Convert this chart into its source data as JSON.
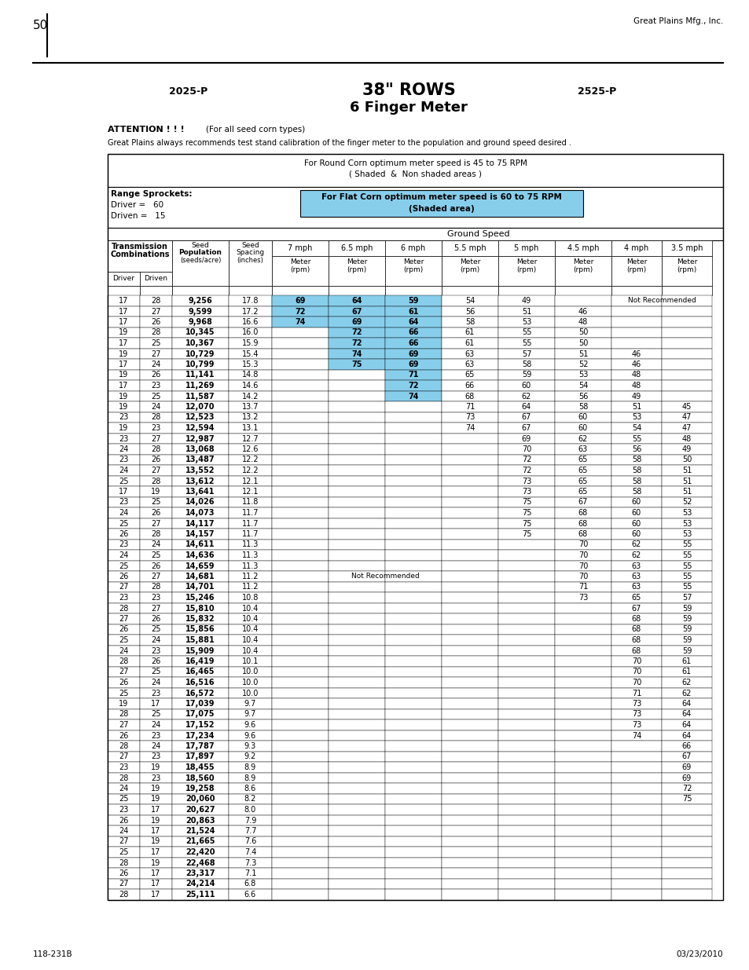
{
  "page_number": "50",
  "company": "Great Plains Mfg., Inc.",
  "model_left": "2025-P",
  "model_right": "2525-P",
  "title_line1": "38\" ROWS",
  "title_line2": "6 Finger Meter",
  "attention_bold": "ATTENTION ! ! !",
  "attention_sub": "(For all seed corn types)",
  "calibration_note": "Great Plains always recommends test stand calibration of the finger meter to the population and ground speed desired .",
  "round_corn_note": "For Round Corn optimum meter speed is 45 to 75 RPM",
  "round_corn_note2": "( Shaded  &  Non shaded areas )",
  "range_sprockets": "Range Sprockets:",
  "driver_label": "Driver =",
  "driver_val": "60",
  "driven_label": "Driven =",
  "driven_val": "15",
  "flat_corn_note": "For Flat Corn optimum meter speed is 60 to 75 RPM",
  "flat_corn_note2": "(Shaded area)",
  "ground_speed": "Ground Speed",
  "col_headers": [
    "7 mph",
    "6.5 mph",
    "6 mph",
    "5.5 mph",
    "5 mph",
    "4.5 mph",
    "4 mph",
    "3.5 mph"
  ],
  "footer_left": "118-231B",
  "footer_right": "03/23/2010",
  "table_data": [
    [
      17,
      28,
      "9,256",
      "17.8",
      "69",
      "64",
      "59",
      "54",
      "49",
      "NR2",
      "",
      ""
    ],
    [
      17,
      27,
      "9,599",
      "17.2",
      "72",
      "67",
      "61",
      "56",
      "51",
      "46",
      "",
      ""
    ],
    [
      17,
      26,
      "9,968",
      "16.6",
      "74",
      "69",
      "64",
      "58",
      "53",
      "48",
      "",
      ""
    ],
    [
      19,
      28,
      "10,345",
      "16.0",
      "",
      "72",
      "66",
      "61",
      "55",
      "50",
      "",
      ""
    ],
    [
      17,
      25,
      "10,367",
      "15.9",
      "",
      "72",
      "66",
      "61",
      "55",
      "50",
      "",
      ""
    ],
    [
      19,
      27,
      "10,729",
      "15.4",
      "",
      "74",
      "69",
      "63",
      "57",
      "51",
      "46",
      ""
    ],
    [
      17,
      24,
      "10,799",
      "15.3",
      "",
      "75",
      "69",
      "63",
      "58",
      "52",
      "46",
      ""
    ],
    [
      19,
      26,
      "11,141",
      "14.8",
      "",
      "",
      "71",
      "65",
      "59",
      "53",
      "48",
      ""
    ],
    [
      17,
      23,
      "11,269",
      "14.6",
      "",
      "",
      "72",
      "66",
      "60",
      "54",
      "48",
      ""
    ],
    [
      19,
      25,
      "11,587",
      "14.2",
      "",
      "",
      "74",
      "68",
      "62",
      "56",
      "49",
      ""
    ],
    [
      19,
      24,
      "12,070",
      "13.7",
      "",
      "",
      "",
      "71",
      "64",
      "58",
      "51",
      "45"
    ],
    [
      23,
      28,
      "12,523",
      "13.2",
      "",
      "",
      "",
      "73",
      "67",
      "60",
      "53",
      "47"
    ],
    [
      19,
      23,
      "12,594",
      "13.1",
      "",
      "",
      "",
      "74",
      "67",
      "60",
      "54",
      "47"
    ],
    [
      23,
      27,
      "12,987",
      "12.7",
      "",
      "",
      "",
      "",
      "69",
      "62",
      "55",
      "48"
    ],
    [
      24,
      28,
      "13,068",
      "12.6",
      "",
      "",
      "",
      "",
      "70",
      "63",
      "56",
      "49"
    ],
    [
      23,
      26,
      "13,487",
      "12.2",
      "",
      "",
      "",
      "",
      "72",
      "65",
      "58",
      "50"
    ],
    [
      24,
      27,
      "13,552",
      "12.2",
      "",
      "",
      "",
      "",
      "72",
      "65",
      "58",
      "51"
    ],
    [
      25,
      28,
      "13,612",
      "12.1",
      "",
      "",
      "",
      "",
      "73",
      "65",
      "58",
      "51"
    ],
    [
      17,
      19,
      "13,641",
      "12.1",
      "",
      "",
      "",
      "",
      "73",
      "65",
      "58",
      "51"
    ],
    [
      23,
      25,
      "14,026",
      "11.8",
      "",
      "",
      "",
      "",
      "75",
      "67",
      "60",
      "52"
    ],
    [
      24,
      26,
      "14,073",
      "11.7",
      "",
      "",
      "",
      "",
      "75",
      "68",
      "60",
      "53"
    ],
    [
      25,
      27,
      "14,117",
      "11.7",
      "",
      "",
      "",
      "",
      "75",
      "68",
      "60",
      "53"
    ],
    [
      26,
      28,
      "14,157",
      "11.7",
      "",
      "",
      "",
      "",
      "75",
      "68",
      "60",
      "53"
    ],
    [
      23,
      24,
      "14,611",
      "11.3",
      "",
      "",
      "",
      "",
      "",
      "70",
      "62",
      "55"
    ],
    [
      24,
      25,
      "14,636",
      "11.3",
      "",
      "",
      "",
      "",
      "",
      "70",
      "62",
      "55"
    ],
    [
      25,
      26,
      "14,659",
      "11.3",
      "",
      "",
      "",
      "",
      "",
      "70",
      "63",
      "55"
    ],
    [
      26,
      27,
      "14,681",
      "11.2",
      "NR1",
      "",
      "",
      "",
      "",
      "70",
      "63",
      "55"
    ],
    [
      27,
      28,
      "14,701",
      "11.2",
      "",
      "",
      "",
      "",
      "",
      "71",
      "63",
      "55"
    ],
    [
      23,
      23,
      "15,246",
      "10.8",
      "",
      "",
      "",
      "",
      "",
      "73",
      "65",
      "57"
    ],
    [
      28,
      27,
      "15,810",
      "10.4",
      "",
      "",
      "",
      "",
      "",
      "",
      "67",
      "59"
    ],
    [
      27,
      26,
      "15,832",
      "10.4",
      "",
      "",
      "",
      "",
      "",
      "",
      "68",
      "59"
    ],
    [
      26,
      25,
      "15,856",
      "10.4",
      "",
      "",
      "",
      "",
      "",
      "",
      "68",
      "59"
    ],
    [
      25,
      24,
      "15,881",
      "10.4",
      "",
      "",
      "",
      "",
      "",
      "",
      "68",
      "59"
    ],
    [
      24,
      23,
      "15,909",
      "10.4",
      "",
      "",
      "",
      "",
      "",
      "",
      "68",
      "59"
    ],
    [
      28,
      26,
      "16,419",
      "10.1",
      "",
      "",
      "",
      "",
      "",
      "",
      "70",
      "61"
    ],
    [
      27,
      25,
      "16,465",
      "10.0",
      "",
      "",
      "",
      "",
      "",
      "",
      "70",
      "61"
    ],
    [
      26,
      24,
      "16,516",
      "10.0",
      "",
      "",
      "",
      "",
      "",
      "",
      "70",
      "62"
    ],
    [
      25,
      23,
      "16,572",
      "10.0",
      "",
      "",
      "",
      "",
      "",
      "",
      "71",
      "62"
    ],
    [
      19,
      17,
      "17,039",
      "9.7",
      "",
      "",
      "",
      "",
      "",
      "",
      "73",
      "64"
    ],
    [
      28,
      25,
      "17,075",
      "9.7",
      "",
      "",
      "",
      "",
      "",
      "",
      "73",
      "64"
    ],
    [
      27,
      24,
      "17,152",
      "9.6",
      "",
      "",
      "",
      "",
      "",
      "",
      "73",
      "64"
    ],
    [
      26,
      23,
      "17,234",
      "9.6",
      "",
      "",
      "",
      "",
      "",
      "",
      "74",
      "64"
    ],
    [
      28,
      24,
      "17,787",
      "9.3",
      "",
      "",
      "",
      "",
      "",
      "",
      "",
      "66"
    ],
    [
      27,
      23,
      "17,897",
      "9.2",
      "",
      "",
      "",
      "",
      "",
      "",
      "",
      "67"
    ],
    [
      23,
      19,
      "18,455",
      "8.9",
      "",
      "",
      "",
      "",
      "",
      "",
      "",
      "69"
    ],
    [
      28,
      23,
      "18,560",
      "8.9",
      "",
      "",
      "",
      "",
      "",
      "",
      "",
      "69"
    ],
    [
      24,
      19,
      "19,258",
      "8.6",
      "",
      "",
      "",
      "",
      "",
      "",
      "",
      "72"
    ],
    [
      25,
      19,
      "20,060",
      "8.2",
      "",
      "",
      "",
      "",
      "",
      "",
      "",
      "75"
    ],
    [
      23,
      17,
      "20,627",
      "8.0",
      "",
      "",
      "",
      "",
      "",
      "",
      "",
      ""
    ],
    [
      26,
      19,
      "20,863",
      "7.9",
      "",
      "",
      "",
      "",
      "",
      "",
      "",
      ""
    ],
    [
      24,
      17,
      "21,524",
      "7.7",
      "",
      "",
      "",
      "",
      "",
      "",
      "",
      ""
    ],
    [
      27,
      19,
      "21,665",
      "7.6",
      "",
      "",
      "",
      "",
      "",
      "",
      "",
      ""
    ],
    [
      25,
      17,
      "22,420",
      "7.4",
      "",
      "",
      "",
      "",
      "",
      "",
      "",
      ""
    ],
    [
      28,
      19,
      "22,468",
      "7.3",
      "",
      "",
      "",
      "",
      "",
      "",
      "",
      ""
    ],
    [
      26,
      17,
      "23,317",
      "7.1",
      "",
      "",
      "",
      "",
      "",
      "",
      "",
      ""
    ],
    [
      27,
      17,
      "24,214",
      "6.8",
      "",
      "",
      "",
      "",
      "",
      "",
      "",
      ""
    ],
    [
      28,
      17,
      "25,111",
      "6.6",
      "",
      "",
      "",
      "",
      "",
      "",
      "",
      ""
    ]
  ],
  "shade_map": {
    "0": [
      0,
      1,
      2
    ],
    "1": [
      0,
      1,
      2
    ],
    "2": [
      0,
      1,
      2
    ],
    "3": [
      1,
      2
    ],
    "4": [
      1,
      2
    ],
    "5": [
      1,
      2
    ],
    "6": [
      1,
      2
    ],
    "7": [
      2
    ],
    "8": [
      2
    ],
    "9": [
      2
    ]
  }
}
